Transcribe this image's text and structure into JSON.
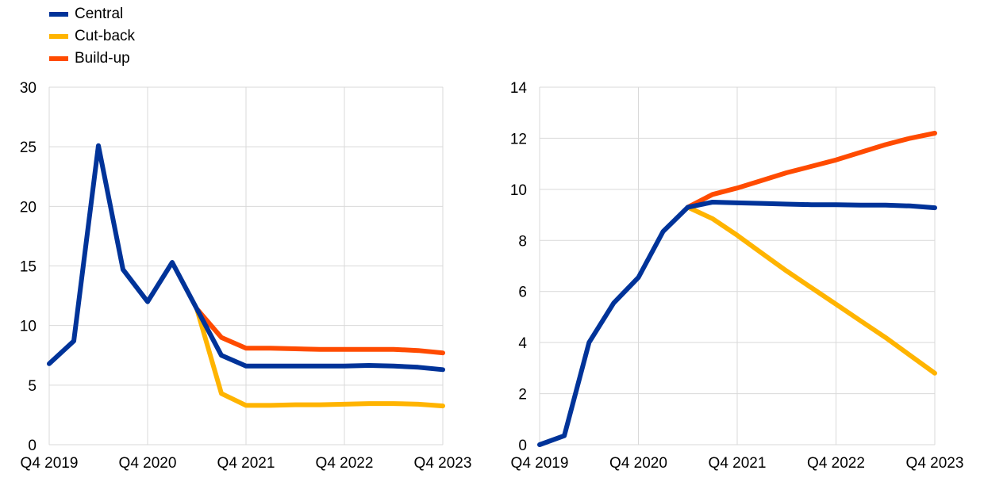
{
  "legend": [
    {
      "name": "Central",
      "color": "#003399"
    },
    {
      "name": "Cut-back",
      "color": "#FFB400"
    },
    {
      "name": "Build-up",
      "color": "#FF4B00"
    }
  ],
  "chart_data": [
    {
      "type": "line",
      "x": [
        "Q4 2019",
        "Q1 2020",
        "Q2 2020",
        "Q3 2020",
        "Q4 2020",
        "Q1 2021",
        "Q2 2021",
        "Q3 2021",
        "Q4 2021",
        "Q1 2022",
        "Q2 2022",
        "Q3 2022",
        "Q4 2022",
        "Q1 2023",
        "Q2 2023",
        "Q3 2023",
        "Q4 2023"
      ],
      "xticks": [
        "Q4 2019",
        "Q4 2020",
        "Q4 2021",
        "Q4 2022",
        "Q4 2023"
      ],
      "ylim": [
        0,
        30
      ],
      "yticks": [
        0,
        5,
        10,
        15,
        20,
        25,
        30
      ],
      "grid": true,
      "legend_placement": "top-left",
      "series": [
        {
          "name": "Central",
          "values": [
            6.8,
            8.7,
            25.1,
            14.7,
            12.0,
            15.3,
            11.4,
            7.5,
            6.6,
            6.6,
            6.6,
            6.6,
            6.6,
            6.65,
            6.6,
            6.5,
            6.3
          ]
        },
        {
          "name": "Cut-back",
          "values": [
            null,
            null,
            null,
            null,
            null,
            null,
            11.4,
            4.3,
            3.3,
            3.3,
            3.35,
            3.35,
            3.4,
            3.45,
            3.45,
            3.4,
            3.25
          ]
        },
        {
          "name": "Build-up",
          "values": [
            null,
            null,
            null,
            null,
            null,
            null,
            11.4,
            9.0,
            8.1,
            8.1,
            8.05,
            8.0,
            8.0,
            8.0,
            8.0,
            7.9,
            7.7
          ]
        }
      ]
    },
    {
      "type": "line",
      "x": [
        "Q4 2019",
        "Q1 2020",
        "Q2 2020",
        "Q3 2020",
        "Q4 2020",
        "Q1 2021",
        "Q2 2021",
        "Q3 2021",
        "Q4 2021",
        "Q1 2022",
        "Q2 2022",
        "Q3 2022",
        "Q4 2022",
        "Q1 2023",
        "Q2 2023",
        "Q3 2023",
        "Q4 2023"
      ],
      "xticks": [
        "Q4 2019",
        "Q4 2020",
        "Q4 2021",
        "Q4 2022",
        "Q4 2023"
      ],
      "ylim": [
        0,
        14
      ],
      "yticks": [
        0,
        2,
        4,
        6,
        8,
        10,
        12,
        14
      ],
      "grid": true,
      "series": [
        {
          "name": "Central",
          "values": [
            0,
            0.35,
            4.0,
            5.55,
            6.55,
            8.35,
            9.3,
            9.5,
            9.47,
            9.45,
            9.42,
            9.4,
            9.4,
            9.38,
            9.38,
            9.35,
            9.28
          ]
        },
        {
          "name": "Cut-back",
          "values": [
            null,
            null,
            null,
            null,
            null,
            null,
            9.3,
            8.85,
            8.2,
            7.5,
            6.8,
            6.15,
            5.5,
            4.85,
            4.2,
            3.5,
            2.8
          ]
        },
        {
          "name": "Build-up",
          "values": [
            null,
            null,
            null,
            null,
            null,
            null,
            9.3,
            9.8,
            10.05,
            10.35,
            10.65,
            10.9,
            11.15,
            11.45,
            11.75,
            12.0,
            12.2
          ]
        }
      ]
    }
  ]
}
